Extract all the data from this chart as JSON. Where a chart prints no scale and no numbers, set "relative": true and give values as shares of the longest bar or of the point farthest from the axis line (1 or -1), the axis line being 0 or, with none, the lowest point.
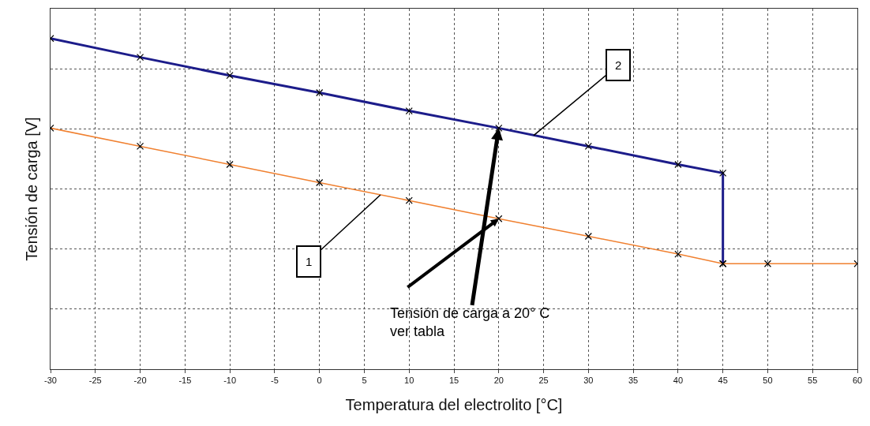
{
  "chart_data": {
    "type": "line",
    "relative": true,
    "xlabel": "Temperatura del electrolito [°C]",
    "ylabel": "Tensión de carga [V]",
    "xlim": [
      -30,
      60
    ],
    "xticks": [
      -30,
      -25,
      -20,
      -15,
      -10,
      -5,
      0,
      5,
      10,
      15,
      20,
      25,
      30,
      35,
      40,
      45,
      50,
      55,
      60
    ],
    "grid": true,
    "marker": "cross",
    "line_style": "solid",
    "tick_labels": "x",
    "series": [
      {
        "color": "#1c1c8a",
        "x": [
          -30,
          -20,
          -10,
          0,
          10,
          20,
          30,
          40,
          45,
          45
        ],
        "values": [
          1.0,
          0.943,
          0.888,
          0.836,
          0.781,
          0.729,
          0.674,
          0.619,
          0.593,
          0.319
        ]
      },
      {
        "color": "#f08030",
        "x": [
          -30,
          -20,
          -10,
          0,
          10,
          20,
          30,
          40,
          45,
          50,
          60
        ],
        "values": [
          0.729,
          0.674,
          0.619,
          0.564,
          0.51,
          0.455,
          0.402,
          0.348,
          0.319,
          0.319,
          0.319
        ]
      }
    ],
    "annotations": [
      {
        "text": "2",
        "x": 23.9,
        "y": 0.707
      },
      {
        "text": "1",
        "x": 6.8,
        "y": 0.527
      },
      {
        "text": "Tensión de carga a 20° C\nver tabla",
        "x": 20,
        "y": 0.729
      }
    ]
  }
}
